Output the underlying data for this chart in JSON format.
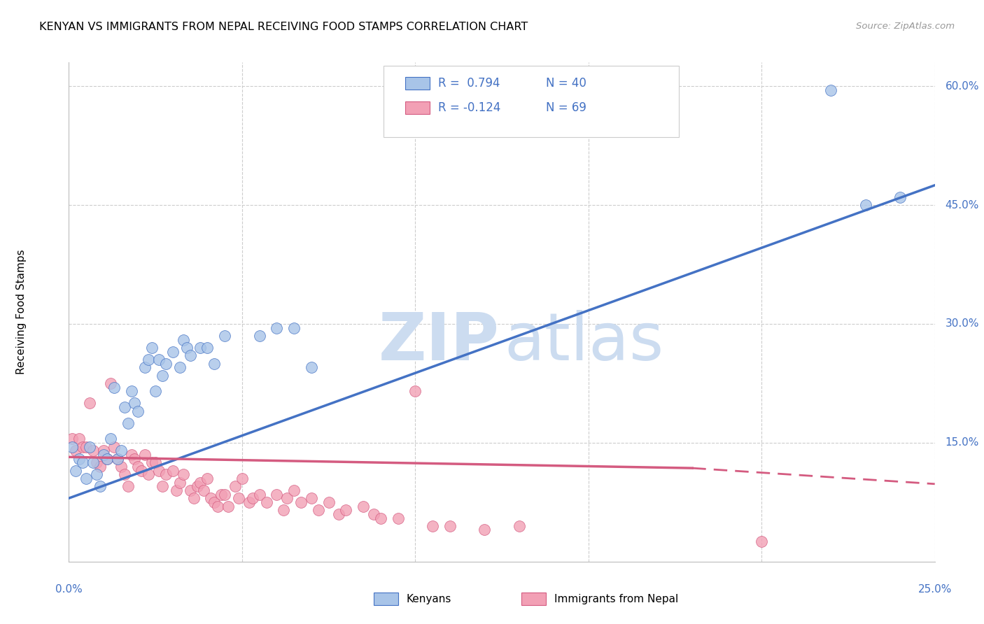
{
  "title": "KENYAN VS IMMIGRANTS FROM NEPAL RECEIVING FOOD STAMPS CORRELATION CHART",
  "source": "Source: ZipAtlas.com",
  "ylabel": "Receiving Food Stamps",
  "right_yticks": [
    "60.0%",
    "45.0%",
    "30.0%",
    "15.0%"
  ],
  "right_ytick_vals": [
    0.6,
    0.45,
    0.3,
    0.15
  ],
  "kenyan_color": "#a8c4e8",
  "kenyan_line_color": "#4472c4",
  "nepal_color": "#f2a0b5",
  "nepal_line_color": "#d45b80",
  "background_color": "#ffffff",
  "watermark_color": "#ccdcf0",
  "xlim": [
    0.0,
    0.25
  ],
  "ylim": [
    0.0,
    0.63
  ],
  "kenyan_line": [
    0.0,
    0.08,
    0.25,
    0.475
  ],
  "nepal_line_solid": [
    0.0,
    0.132,
    0.18,
    0.118
  ],
  "nepal_line_dash": [
    0.18,
    0.118,
    0.25,
    0.098
  ],
  "kenyan_scatter": [
    [
      0.001,
      0.145
    ],
    [
      0.002,
      0.115
    ],
    [
      0.003,
      0.13
    ],
    [
      0.004,
      0.125
    ],
    [
      0.005,
      0.105
    ],
    [
      0.006,
      0.145
    ],
    [
      0.007,
      0.125
    ],
    [
      0.008,
      0.11
    ],
    [
      0.009,
      0.095
    ],
    [
      0.01,
      0.135
    ],
    [
      0.011,
      0.13
    ],
    [
      0.012,
      0.155
    ],
    [
      0.013,
      0.22
    ],
    [
      0.014,
      0.13
    ],
    [
      0.015,
      0.14
    ],
    [
      0.016,
      0.195
    ],
    [
      0.017,
      0.175
    ],
    [
      0.018,
      0.215
    ],
    [
      0.019,
      0.2
    ],
    [
      0.02,
      0.19
    ],
    [
      0.022,
      0.245
    ],
    [
      0.023,
      0.255
    ],
    [
      0.024,
      0.27
    ],
    [
      0.025,
      0.215
    ],
    [
      0.026,
      0.255
    ],
    [
      0.027,
      0.235
    ],
    [
      0.028,
      0.25
    ],
    [
      0.03,
      0.265
    ],
    [
      0.032,
      0.245
    ],
    [
      0.033,
      0.28
    ],
    [
      0.034,
      0.27
    ],
    [
      0.035,
      0.26
    ],
    [
      0.038,
      0.27
    ],
    [
      0.04,
      0.27
    ],
    [
      0.042,
      0.25
    ],
    [
      0.045,
      0.285
    ],
    [
      0.055,
      0.285
    ],
    [
      0.06,
      0.295
    ],
    [
      0.065,
      0.295
    ],
    [
      0.07,
      0.245
    ],
    [
      0.22,
      0.595
    ],
    [
      0.23,
      0.45
    ],
    [
      0.24,
      0.46
    ]
  ],
  "nepal_scatter": [
    [
      0.001,
      0.155
    ],
    [
      0.002,
      0.14
    ],
    [
      0.003,
      0.155
    ],
    [
      0.004,
      0.145
    ],
    [
      0.005,
      0.145
    ],
    [
      0.006,
      0.2
    ],
    [
      0.007,
      0.14
    ],
    [
      0.008,
      0.125
    ],
    [
      0.009,
      0.12
    ],
    [
      0.01,
      0.14
    ],
    [
      0.011,
      0.13
    ],
    [
      0.012,
      0.225
    ],
    [
      0.013,
      0.145
    ],
    [
      0.014,
      0.13
    ],
    [
      0.015,
      0.12
    ],
    [
      0.016,
      0.11
    ],
    [
      0.017,
      0.095
    ],
    [
      0.018,
      0.135
    ],
    [
      0.019,
      0.13
    ],
    [
      0.02,
      0.12
    ],
    [
      0.021,
      0.115
    ],
    [
      0.022,
      0.135
    ],
    [
      0.023,
      0.11
    ],
    [
      0.024,
      0.125
    ],
    [
      0.025,
      0.125
    ],
    [
      0.026,
      0.115
    ],
    [
      0.027,
      0.095
    ],
    [
      0.028,
      0.11
    ],
    [
      0.03,
      0.115
    ],
    [
      0.031,
      0.09
    ],
    [
      0.032,
      0.1
    ],
    [
      0.033,
      0.11
    ],
    [
      0.035,
      0.09
    ],
    [
      0.036,
      0.08
    ],
    [
      0.037,
      0.095
    ],
    [
      0.038,
      0.1
    ],
    [
      0.039,
      0.09
    ],
    [
      0.04,
      0.105
    ],
    [
      0.041,
      0.08
    ],
    [
      0.042,
      0.075
    ],
    [
      0.043,
      0.07
    ],
    [
      0.044,
      0.085
    ],
    [
      0.045,
      0.085
    ],
    [
      0.046,
      0.07
    ],
    [
      0.048,
      0.095
    ],
    [
      0.049,
      0.08
    ],
    [
      0.05,
      0.105
    ],
    [
      0.052,
      0.075
    ],
    [
      0.053,
      0.08
    ],
    [
      0.055,
      0.085
    ],
    [
      0.057,
      0.075
    ],
    [
      0.06,
      0.085
    ],
    [
      0.062,
      0.065
    ],
    [
      0.063,
      0.08
    ],
    [
      0.065,
      0.09
    ],
    [
      0.067,
      0.075
    ],
    [
      0.07,
      0.08
    ],
    [
      0.072,
      0.065
    ],
    [
      0.075,
      0.075
    ],
    [
      0.078,
      0.06
    ],
    [
      0.08,
      0.065
    ],
    [
      0.085,
      0.07
    ],
    [
      0.088,
      0.06
    ],
    [
      0.09,
      0.055
    ],
    [
      0.095,
      0.055
    ],
    [
      0.1,
      0.215
    ],
    [
      0.105,
      0.045
    ],
    [
      0.11,
      0.045
    ],
    [
      0.12,
      0.04
    ],
    [
      0.13,
      0.045
    ],
    [
      0.2,
      0.025
    ]
  ]
}
